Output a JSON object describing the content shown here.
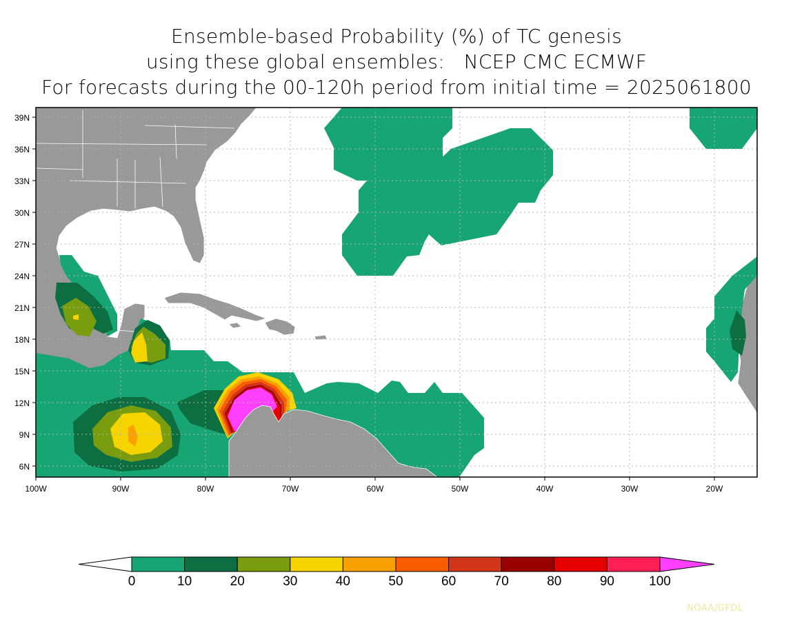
{
  "title": {
    "line1": "Ensemble-based Probability (%) of TC genesis",
    "line2": "using these global ensembles:   NCEP CMC ECMWF",
    "line3": "For forecasts during the 00-120h period from initial time = 2025061800"
  },
  "map": {
    "lat_labels": [
      "39N",
      "36N",
      "33N",
      "30N",
      "27N",
      "24N",
      "21N",
      "18N",
      "15N",
      "12N",
      "9N",
      "6N"
    ],
    "lon_labels": [
      "100W",
      "90W",
      "80W",
      "70W",
      "60W",
      "50W",
      "40W",
      "30W",
      "20W"
    ],
    "colors": {
      "land": "#999999",
      "ocean": "#ffffff",
      "grid": "#b4b4b4",
      "border": "#ffffff"
    }
  },
  "colorbar": {
    "labels": [
      "0",
      "10",
      "20",
      "30",
      "40",
      "50",
      "60",
      "70",
      "80",
      "90",
      "100"
    ],
    "colors": [
      "#ffffff",
      "#17a673",
      "#0d6e42",
      "#7a9d0f",
      "#f5d400",
      "#f8a100",
      "#fa5c00",
      "#d1361a",
      "#9a0000",
      "#e60000",
      "#ff1f55",
      "#ff40ff"
    ]
  },
  "credit": "NOAA/GFDL"
}
